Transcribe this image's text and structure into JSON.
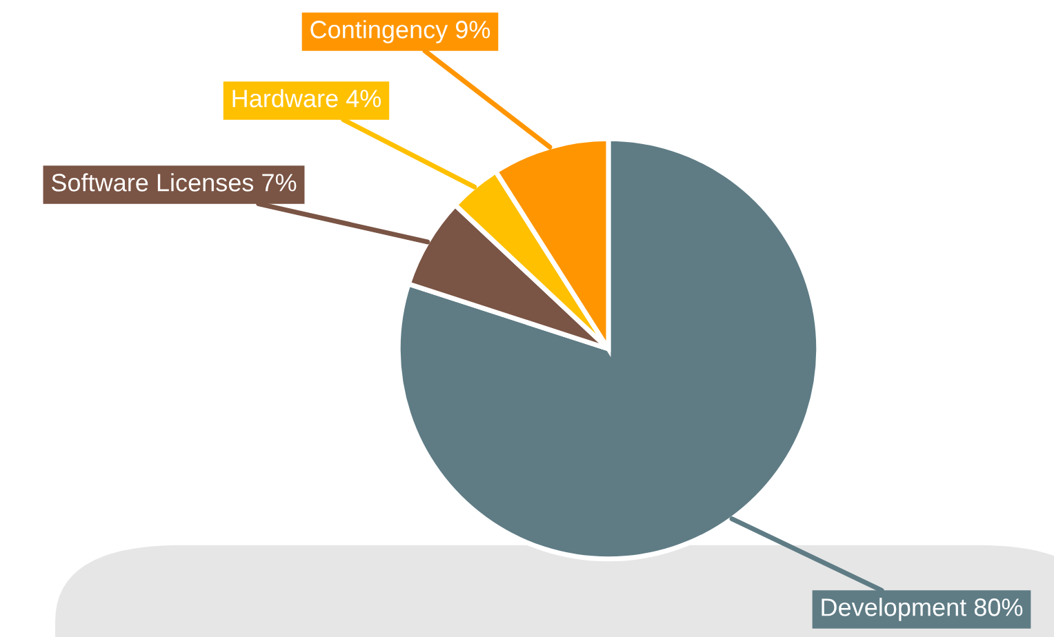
{
  "chart_data": {
    "type": "pie",
    "categories": [
      "Development",
      "Software Licenses",
      "Hardware",
      "Contingency"
    ],
    "values": [
      80,
      7,
      4,
      9
    ],
    "value_labels": [
      "80%",
      "7%",
      "4%",
      "9%"
    ],
    "colors": [
      "#5f7c85",
      "#7a5444",
      "#ffc000",
      "#ff9500"
    ],
    "legend": false
  }
}
